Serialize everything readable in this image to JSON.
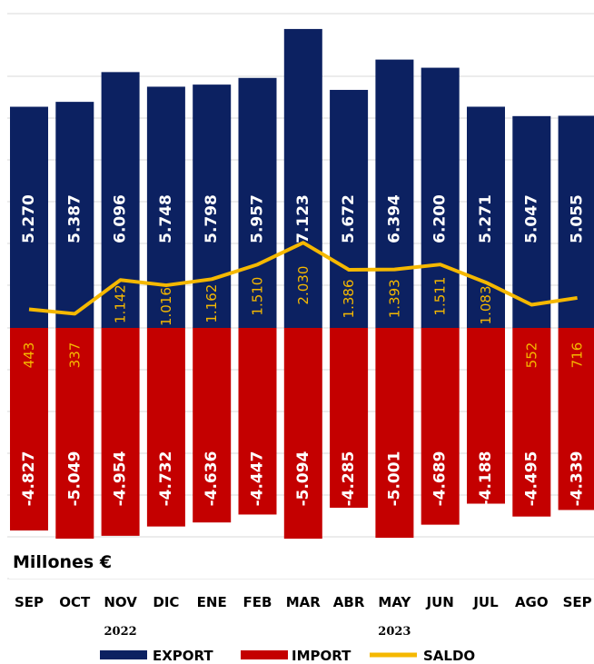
{
  "chart_data": {
    "type": "bar",
    "unit_label": "Millones €",
    "categories": [
      "SEP",
      "OCT",
      "NOV",
      "DIC",
      "ENE",
      "FEB",
      "MAR",
      "ABR",
      "MAY",
      "JUN",
      "JUL",
      "AGO",
      "SEP"
    ],
    "years": [
      {
        "label": "2022",
        "category_index": 2
      },
      {
        "label": "2023",
        "category_index": 8
      }
    ],
    "series": [
      {
        "name": "EXPORT",
        "color": "#0c2161",
        "values": [
          5270,
          5387,
          6096,
          5748,
          5798,
          5957,
          7123,
          5672,
          6394,
          6200,
          5271,
          5047,
          5055
        ],
        "labels": [
          "5.270",
          "5.387",
          "6.096",
          "5.748",
          "5.798",
          "5.957",
          "7.123",
          "5.672",
          "6.394",
          "6.200",
          "5.271",
          "5.047",
          "5.055"
        ]
      },
      {
        "name": "IMPORT",
        "color": "#c40000",
        "values": [
          -4827,
          -5049,
          -4954,
          -4732,
          -4636,
          -4447,
          -5094,
          -4285,
          -5001,
          -4689,
          -4188,
          -4495,
          -4339
        ],
        "labels": [
          "-4.827",
          "-5.049",
          "-4.954",
          "-4.732",
          "-4.636",
          "-4.447",
          "-5.094",
          "-4.285",
          "-5.001",
          "-4.689",
          "-4.188",
          "-4.495",
          "-4.339"
        ]
      },
      {
        "name": "SALDO",
        "color": "#f5b800",
        "values": [
          443,
          337,
          1142,
          1016,
          1162,
          1510,
          2030,
          1386,
          1393,
          1511,
          1083,
          552,
          716
        ],
        "labels": [
          "443",
          "337",
          "1.142",
          "1.016",
          "1.162",
          "1.510",
          "2.030",
          "1.386",
          "1.393",
          "1.511",
          "1.083",
          "552",
          "716"
        ]
      }
    ],
    "ylim": [
      -5200,
      7200
    ],
    "grid": true,
    "legend_position": "bottom"
  }
}
